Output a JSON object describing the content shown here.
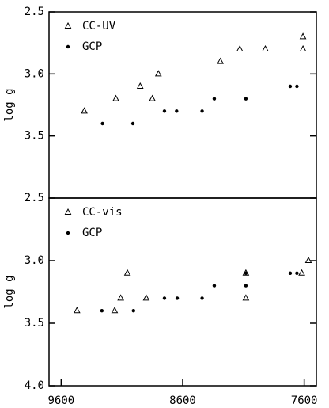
{
  "chart_data": [
    {
      "type": "scatter",
      "ylabel": "log g",
      "xlim": [
        9700,
        7500
      ],
      "ylim": [
        4,
        2.5
      ],
      "yticks": [
        2.5,
        {
          "value": 3,
          "label": "3.0"
        },
        3.5
      ],
      "series": [
        {
          "name": "CC-UV",
          "marker": "triangle",
          "color": "#000000",
          "x": [
            9410,
            9150,
            8950,
            8850,
            8800,
            8290,
            8130,
            7920,
            7610,
            7610
          ],
          "values": [
            3.3,
            3.2,
            3.1,
            3.2,
            3.0,
            2.9,
            2.8,
            2.8,
            2.8,
            2.7
          ]
        },
        {
          "name": "GCP",
          "marker": "dot",
          "color": "#000000",
          "x": [
            9260,
            9010,
            8750,
            8650,
            8440,
            8340,
            8080,
            7715,
            7660
          ],
          "values": [
            3.4,
            3.4,
            3.3,
            3.3,
            3.3,
            3.2,
            3.2,
            3.1,
            3.1
          ]
        }
      ]
    },
    {
      "type": "scatter",
      "ylabel": "log g",
      "xlim": [
        9700,
        7500
      ],
      "ylim": [
        4,
        2.5
      ],
      "yticks": [
        2.5,
        {
          "value": 3,
          "label": "3.0"
        },
        3.5,
        {
          "value": 4,
          "label": "4.0"
        }
      ],
      "xticks": [
        9600,
        8600,
        7600
      ],
      "series": [
        {
          "name": "CC-vis",
          "marker": "triangle",
          "color": "#000000",
          "x": [
            9470,
            9160,
            9110,
            9055,
            8900,
            8080,
            8080,
            7620,
            7565
          ],
          "values": [
            3.4,
            3.4,
            3.3,
            3.1,
            3.3,
            3.1,
            3.3,
            3.1,
            3.0
          ]
        },
        {
          "name": "GCP",
          "marker": "dot",
          "color": "#000000",
          "x": [
            9265,
            9005,
            8750,
            8645,
            8440,
            8340,
            8080,
            8080,
            7715,
            7660
          ],
          "values": [
            3.4,
            3.4,
            3.3,
            3.3,
            3.3,
            3.2,
            3.2,
            3.1,
            3.1,
            3.1
          ]
        }
      ]
    }
  ]
}
